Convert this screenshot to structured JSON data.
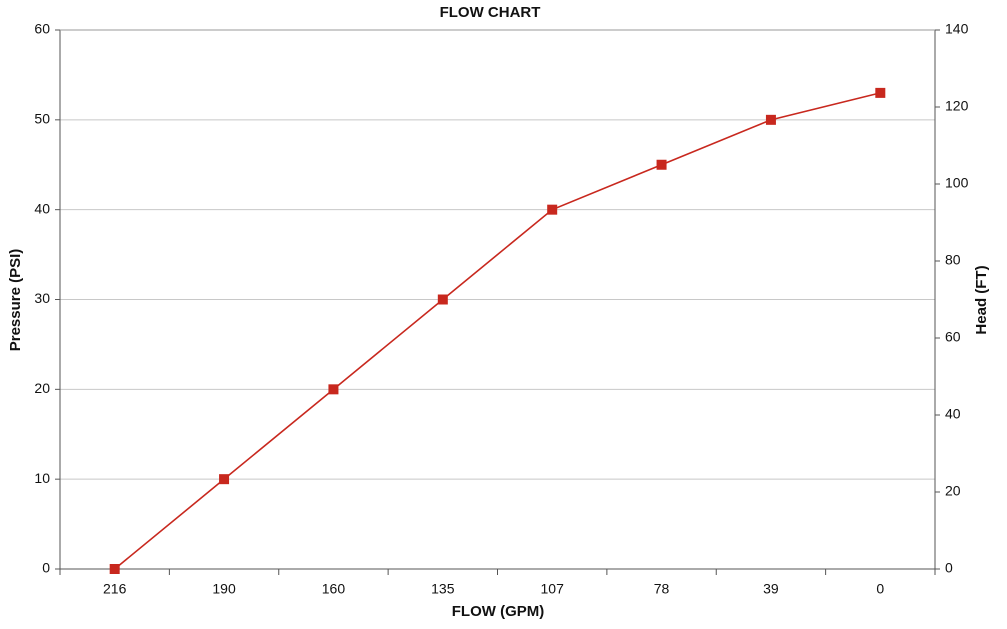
{
  "chart_data": {
    "type": "line",
    "title": "FLOW CHART",
    "x_label": "FLOW (GPM)",
    "y_label": "Pressure (PSI)",
    "y2_label": "Head (FT)",
    "categories": [
      "216",
      "190",
      "160",
      "135",
      "107",
      "78",
      "39",
      "0"
    ],
    "series": [
      {
        "name": "Pressure",
        "color": "#c8281e",
        "values": [
          0,
          10,
          20,
          30,
          40,
          45,
          50,
          53
        ]
      }
    ],
    "ylim": [
      0,
      60
    ],
    "yticks": [
      0,
      10,
      20,
      30,
      40,
      50,
      60
    ],
    "y2lim": [
      0,
      140
    ],
    "y2ticks": [
      0,
      20,
      40,
      60,
      80,
      100,
      120,
      140
    ],
    "grid": true
  }
}
